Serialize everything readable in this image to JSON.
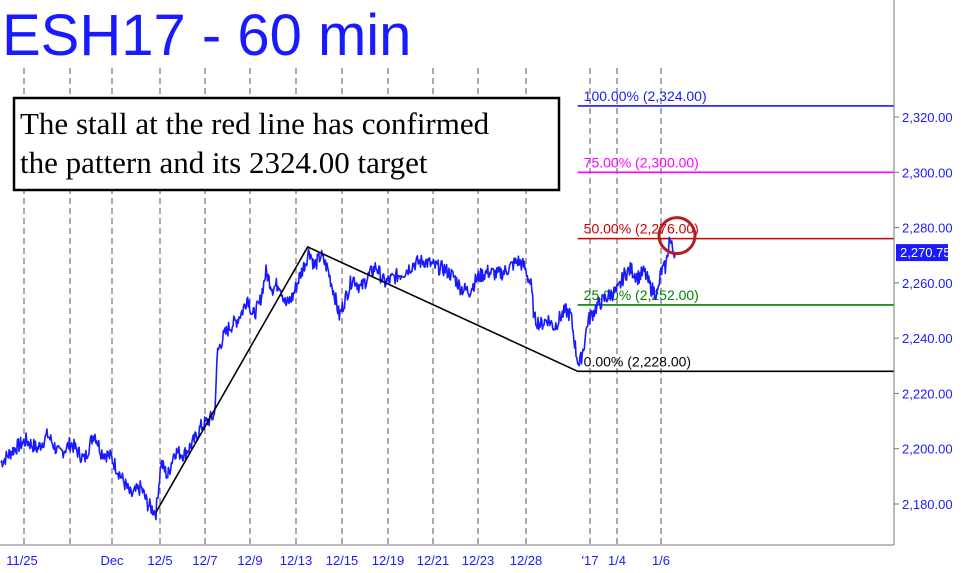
{
  "chart_data": {
    "type": "line",
    "title": "ESH17 - 60 min",
    "annotation": "The stall at the red line has confirmed the pattern and its 2324.00 target",
    "annotation_lines": [
      "The stall at the red line has confirmed",
      "the pattern and its 2324.00 target"
    ],
    "ylim": [
      2165,
      2335
    ],
    "y_ticks": [
      2180,
      2200,
      2220,
      2240,
      2260,
      2280,
      2300,
      2320
    ],
    "y_tick_labels": [
      "2,180.00",
      "2,200.00",
      "2,220.00",
      "2,240.00",
      "2,260.00",
      "2,280.00",
      "2,300.00",
      "2,320.00"
    ],
    "x_tick_labels": [
      "11/25",
      "Dec",
      "12/5",
      "12/7",
      "12/9",
      "12/13",
      "12/15",
      "12/19",
      "12/21",
      "12/23",
      "12/28",
      "'17",
      "1/4",
      "1/6"
    ],
    "last_price": 2270.75,
    "last_price_label": "2,270.75",
    "fib_levels": [
      {
        "pct": 100,
        "value": 2324.0,
        "label": "100.00% (2,324.00)",
        "color": "#1a1aff"
      },
      {
        "pct": 75,
        "value": 2300.0,
        "label": "75.00% (2,300.00)",
        "color": "#ff00ff"
      },
      {
        "pct": 50,
        "value": 2276.0,
        "label": "50.00% (2,276.00)",
        "color": "#cc0000"
      },
      {
        "pct": 25,
        "value": 2252.0,
        "label": "25.00% (2,252.00)",
        "color": "#008000"
      },
      {
        "pct": 0,
        "value": 2228.0,
        "label": "0.00% (2,228.00)",
        "color": "#000000"
      }
    ],
    "pattern_points": [
      {
        "bar": 93,
        "value": 2177
      },
      {
        "bar": 184,
        "value": 2273
      },
      {
        "bar": 346,
        "value": 2228
      }
    ],
    "series": [
      {
        "color": "#1a1aff",
        "anchors": [
          [
            0,
            2195
          ],
          [
            8,
            2200
          ],
          [
            15,
            2203
          ],
          [
            22,
            2200
          ],
          [
            28,
            2205
          ],
          [
            35,
            2198
          ],
          [
            42,
            2202
          ],
          [
            50,
            2196
          ],
          [
            56,
            2206
          ],
          [
            60,
            2199
          ],
          [
            66,
            2197
          ],
          [
            72,
            2190
          ],
          [
            78,
            2183
          ],
          [
            84,
            2186
          ],
          [
            88,
            2180
          ],
          [
            91,
            2178
          ],
          [
            93,
            2177
          ],
          [
            96,
            2195
          ],
          [
            100,
            2190
          ],
          [
            104,
            2199
          ],
          [
            110,
            2198
          ],
          [
            116,
            2203
          ],
          [
            120,
            2208
          ],
          [
            124,
            2210
          ],
          [
            128,
            2212
          ],
          [
            130,
            2235
          ],
          [
            133,
            2240
          ],
          [
            137,
            2244
          ],
          [
            141,
            2246
          ],
          [
            145,
            2250
          ],
          [
            148,
            2255
          ],
          [
            151,
            2248
          ],
          [
            155,
            2252
          ],
          [
            159,
            2264
          ],
          [
            163,
            2258
          ],
          [
            167,
            2260
          ],
          [
            171,
            2252
          ],
          [
            175,
            2255
          ],
          [
            179,
            2262
          ],
          [
            183,
            2268
          ],
          [
            185,
            2272
          ],
          [
            188,
            2266
          ],
          [
            192,
            2270
          ],
          [
            196,
            2265
          ],
          [
            200,
            2256
          ],
          [
            203,
            2248
          ],
          [
            207,
            2255
          ],
          [
            211,
            2262
          ],
          [
            216,
            2258
          ],
          [
            220,
            2262
          ],
          [
            225,
            2266
          ],
          [
            230,
            2260
          ],
          [
            236,
            2262
          ],
          [
            242,
            2264
          ],
          [
            248,
            2267
          ],
          [
            254,
            2268
          ],
          [
            260,
            2266
          ],
          [
            266,
            2265
          ],
          [
            272,
            2262
          ],
          [
            276,
            2258
          ],
          [
            281,
            2257
          ],
          [
            286,
            2262
          ],
          [
            292,
            2264
          ],
          [
            298,
            2263
          ],
          [
            302,
            2264
          ],
          [
            306,
            2266
          ],
          [
            310,
            2268
          ],
          [
            314,
            2266
          ],
          [
            318,
            2259
          ],
          [
            320,
            2247
          ],
          [
            324,
            2245
          ],
          [
            328,
            2247
          ],
          [
            332,
            2244
          ],
          [
            336,
            2248
          ],
          [
            339,
            2250
          ],
          [
            342,
            2248
          ],
          [
            345,
            2235
          ],
          [
            347,
            2230
          ],
          [
            350,
            2238
          ],
          [
            352,
            2246
          ],
          [
            355,
            2249
          ],
          [
            358,
            2252
          ],
          [
            362,
            2254
          ],
          [
            366,
            2256
          ],
          [
            370,
            2257
          ],
          [
            374,
            2263
          ],
          [
            378,
            2265
          ],
          [
            382,
            2262
          ],
          [
            386,
            2264
          ],
          [
            390,
            2258
          ],
          [
            394,
            2256
          ],
          [
            396,
            2264
          ],
          [
            399,
            2266
          ],
          [
            401,
            2276
          ],
          [
            403,
            2272
          ],
          [
            405,
            2270.75
          ]
        ]
      }
    ]
  }
}
